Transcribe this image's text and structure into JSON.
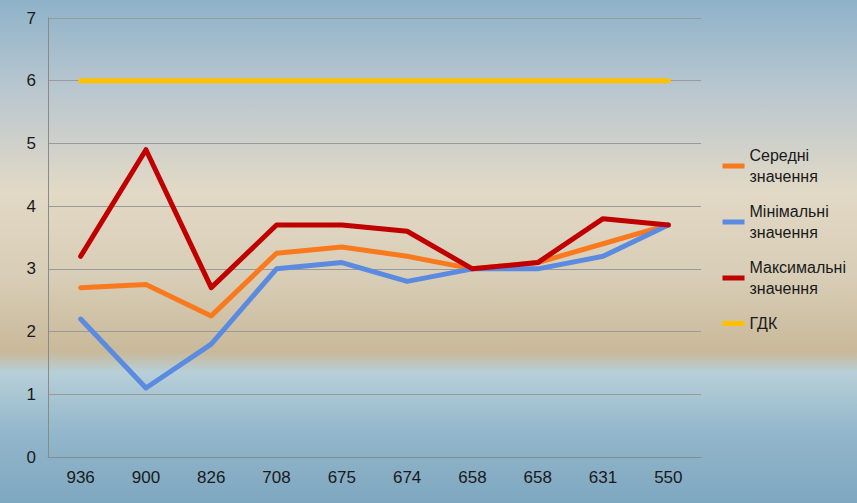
{
  "chart_data": {
    "type": "line",
    "categories": [
      "936",
      "900",
      "826",
      "708",
      "675",
      "674",
      "658",
      "658",
      "631",
      "550"
    ],
    "series": [
      {
        "name": "Середні значення",
        "color": "#f97a1e",
        "values": [
          2.7,
          2.75,
          2.25,
          3.25,
          3.35,
          3.2,
          3.0,
          3.1,
          3.4,
          3.7
        ]
      },
      {
        "name": "Мінімальні значення",
        "color": "#5b8be0",
        "values": [
          2.2,
          1.1,
          1.8,
          3.0,
          3.1,
          2.8,
          3.0,
          3.0,
          3.2,
          3.7
        ]
      },
      {
        "name": "Максимальні значення",
        "color": "#c00000",
        "values": [
          3.2,
          4.9,
          2.7,
          3.7,
          3.7,
          3.6,
          3.0,
          3.1,
          3.8,
          3.7
        ]
      },
      {
        "name": "ГДК",
        "color": "#ffc000",
        "values": [
          6,
          6,
          6,
          6,
          6,
          6,
          6,
          6,
          6,
          6
        ]
      }
    ],
    "ylim": [
      0,
      7
    ],
    "yticks": [
      0,
      1,
      2,
      3,
      4,
      5,
      6,
      7
    ],
    "grid": true,
    "legend": "right"
  }
}
